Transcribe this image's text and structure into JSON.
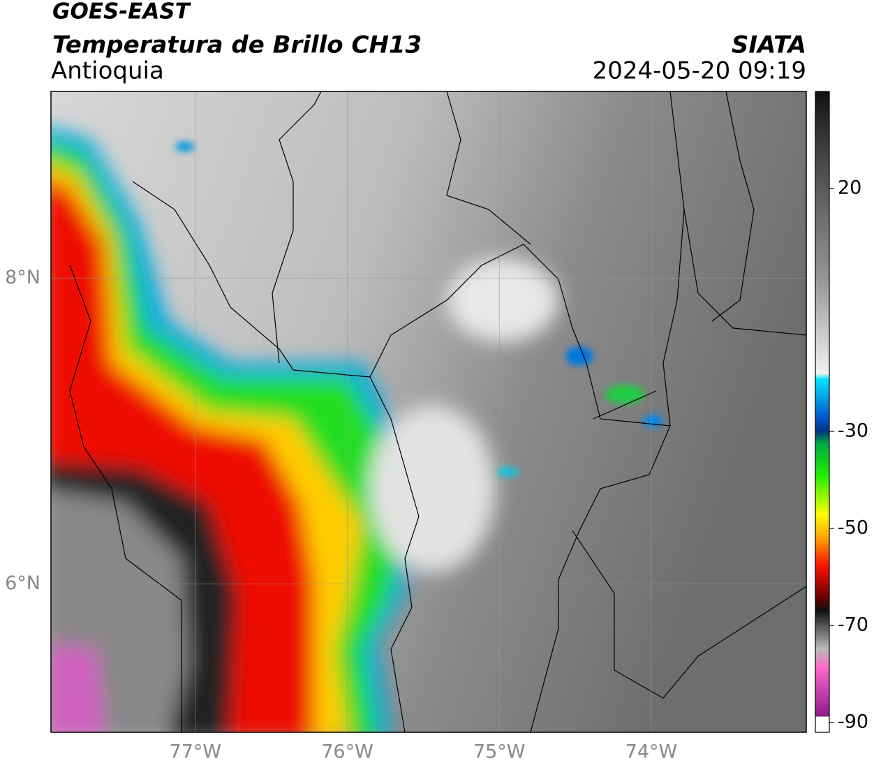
{
  "header": {
    "satellite": "GOES-EAST",
    "title": "Temperatura de Brillo CH13",
    "subtitle": "Antioquia",
    "source": "SIATA",
    "timestamp": "2024-05-20 09:19"
  },
  "map": {
    "xlim": [
      -77.95,
      -72.98
    ],
    "ylim": [
      5.03,
      9.22
    ],
    "xticks": [
      {
        "value": -77,
        "label": "77°W"
      },
      {
        "value": -76,
        "label": "76°W"
      },
      {
        "value": -75,
        "label": "75°W"
      },
      {
        "value": -74,
        "label": "74°W"
      }
    ],
    "yticks": [
      {
        "value": 8,
        "label": "8°N"
      },
      {
        "value": 6,
        "label": "6°N"
      }
    ]
  },
  "colorbar": {
    "range": [
      -92,
      40
    ],
    "ticks": [
      20,
      -30,
      -50,
      -70,
      -90
    ]
  }
}
